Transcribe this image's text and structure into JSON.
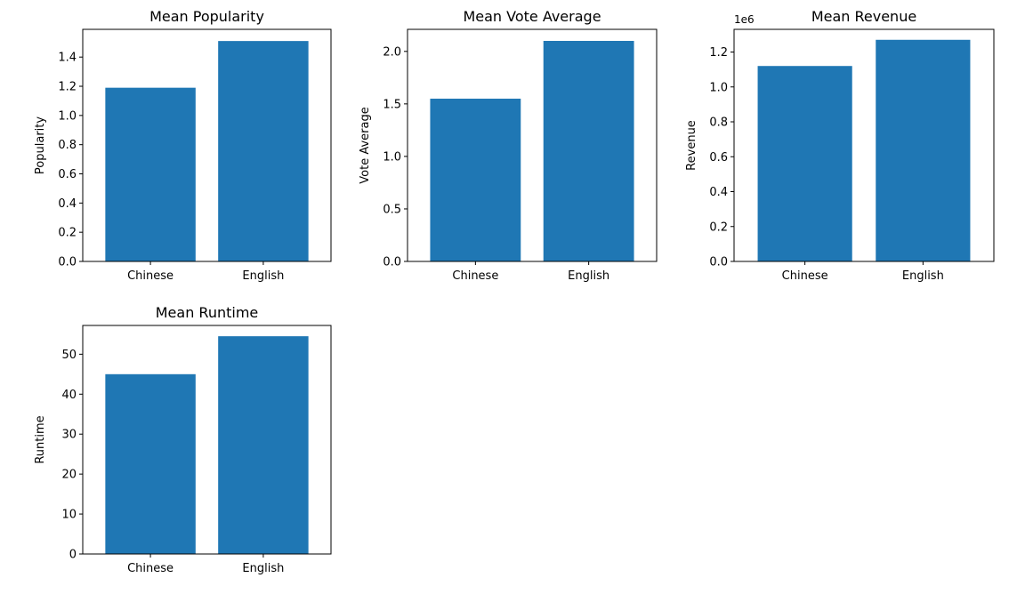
{
  "chart_data": [
    {
      "type": "bar",
      "title": "Mean Popularity",
      "categories": [
        "Chinese",
        "English"
      ],
      "values": [
        1.19,
        1.51
      ],
      "xlabel": "",
      "ylabel": "Popularity",
      "ylim": [
        0,
        1.59
      ],
      "yticks": [
        0,
        0.2,
        0.4,
        0.6,
        0.8,
        1.0,
        1.2,
        1.4
      ],
      "ytick_labels": [
        "0.0",
        "0.2",
        "0.4",
        "0.6",
        "0.8",
        "1.0",
        "1.2",
        "1.4"
      ],
      "offset_label": "",
      "bar_color": "#1f77b4",
      "grid": false
    },
    {
      "type": "bar",
      "title": "Mean Vote Average",
      "categories": [
        "Chinese",
        "English"
      ],
      "values": [
        1.55,
        2.1
      ],
      "xlabel": "",
      "ylabel": "Vote Average",
      "ylim": [
        0,
        2.21
      ],
      "yticks": [
        0,
        0.5,
        1.0,
        1.5,
        2.0
      ],
      "ytick_labels": [
        "0.0",
        "0.5",
        "1.0",
        "1.5",
        "2.0"
      ],
      "offset_label": "",
      "bar_color": "#1f77b4",
      "grid": false
    },
    {
      "type": "bar",
      "title": "Mean Revenue",
      "categories": [
        "Chinese",
        "English"
      ],
      "values": [
        1120000,
        1270000
      ],
      "xlabel": "",
      "ylabel": "Revenue",
      "ylim": [
        0,
        1330000
      ],
      "yticks": [
        0,
        200000,
        400000,
        600000,
        800000,
        1000000,
        1200000
      ],
      "ytick_labels": [
        "0.0",
        "0.2",
        "0.4",
        "0.6",
        "0.8",
        "1.0",
        "1.2"
      ],
      "offset_label": "1e6",
      "bar_color": "#1f77b4",
      "grid": false
    },
    {
      "type": "bar",
      "title": "Mean Runtime",
      "categories": [
        "Chinese",
        "English"
      ],
      "values": [
        45,
        54.5
      ],
      "xlabel": "",
      "ylabel": "Runtime",
      "ylim": [
        0,
        57.2
      ],
      "yticks": [
        0,
        10,
        20,
        30,
        40,
        50
      ],
      "ytick_labels": [
        "0",
        "10",
        "20",
        "30",
        "40",
        "50"
      ],
      "offset_label": "",
      "bar_color": "#1f77b4",
      "grid": false
    }
  ]
}
